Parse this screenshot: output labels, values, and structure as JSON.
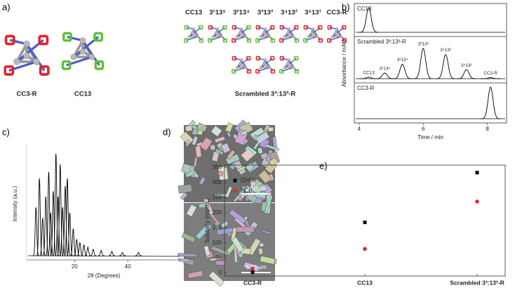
{
  "panel_labels": {
    "a": "a)",
    "b": "b)",
    "c": "c)",
    "d": "d)",
    "e": "e)"
  },
  "molecules": {
    "large": [
      "CC3-R",
      "CC13"
    ],
    "small": [
      "CC13",
      "3¹13⁵",
      "3²13⁴",
      "3³13³",
      "3⁴13²",
      "3⁵13¹",
      "CC3-R"
    ],
    "group_label": "Scrambled 3³:13³-R"
  },
  "sem_images": [
    {
      "scale_bar": "3.00 μm"
    },
    {
      "scale_bar": "5.00 μm"
    }
  ],
  "chart_data": [
    {
      "type": "peaks",
      "xlabel": "Time / min",
      "ylabel": "Absorbance / mAU",
      "xlim": [
        3.85,
        8.6
      ],
      "xticks": [
        4,
        6,
        8
      ],
      "series": [
        {
          "name": "CC13",
          "color": "#000000",
          "x": [
            4.3
          ],
          "values": [
            1.0
          ]
        },
        {
          "name": "Scrambled 3³:13³-R",
          "color": "#000000",
          "x": [
            4.3,
            4.8,
            5.35,
            6.0,
            6.7,
            7.35,
            8.1
          ],
          "values": [
            0.04,
            0.15,
            0.38,
            0.8,
            0.64,
            0.24,
            0.03
          ],
          "peak_labels": [
            "CC13",
            "3¹13⁵",
            "3²13⁴",
            "3³13³",
            "3⁴13²",
            "3⁵13¹",
            "CC3-R"
          ]
        },
        {
          "name": "CC3-R",
          "color": "#000000",
          "x": [
            8.1
          ],
          "values": [
            1.0
          ]
        }
      ]
    },
    {
      "type": "peaks",
      "xlabel": "2θ (Degrees)",
      "ylabel": "Intensity (a.u.)",
      "xlim": [
        2,
        60
      ],
      "xticks": [
        20,
        40
      ],
      "series": [
        {
          "color": "#000000",
          "x": [
            5.5,
            6.8,
            8.0,
            9.2,
            10.3,
            11.0,
            12.0,
            13.0,
            13.8,
            14.6,
            15.5,
            16.5,
            17.3,
            18.2,
            19.5,
            20.8,
            22.0,
            23.5,
            25.0,
            27.0,
            30.0,
            34.0,
            38.0,
            44.0
          ],
          "values": [
            0.45,
            0.72,
            0.35,
            0.55,
            0.78,
            0.4,
            0.6,
            0.95,
            0.55,
            0.85,
            0.45,
            0.65,
            0.72,
            0.4,
            0.25,
            0.15,
            0.12,
            0.1,
            0.08,
            0.06,
            0.05,
            0.04,
            0.03,
            0.03
          ]
        }
      ]
    },
    {
      "type": "scatter",
      "ylabel": "Solubility (mg/mL)",
      "categories": [
        "CC3-R",
        "CC13",
        "Scrambled 3³:13³-R"
      ],
      "ylim": [
        -10,
        358
      ],
      "yticks": [
        0,
        50,
        100,
        150,
        200,
        250,
        300,
        350
      ],
      "legend": "upper left",
      "series": [
        {
          "name": "CHCl₃",
          "color": "#000000",
          "marker": "square",
          "values": [
            3,
            168,
            333
          ]
        },
        {
          "name": "PCP",
          "color": "#e8262f",
          "marker": "circle",
          "values": [
            15,
            80,
            237
          ]
        }
      ]
    }
  ]
}
